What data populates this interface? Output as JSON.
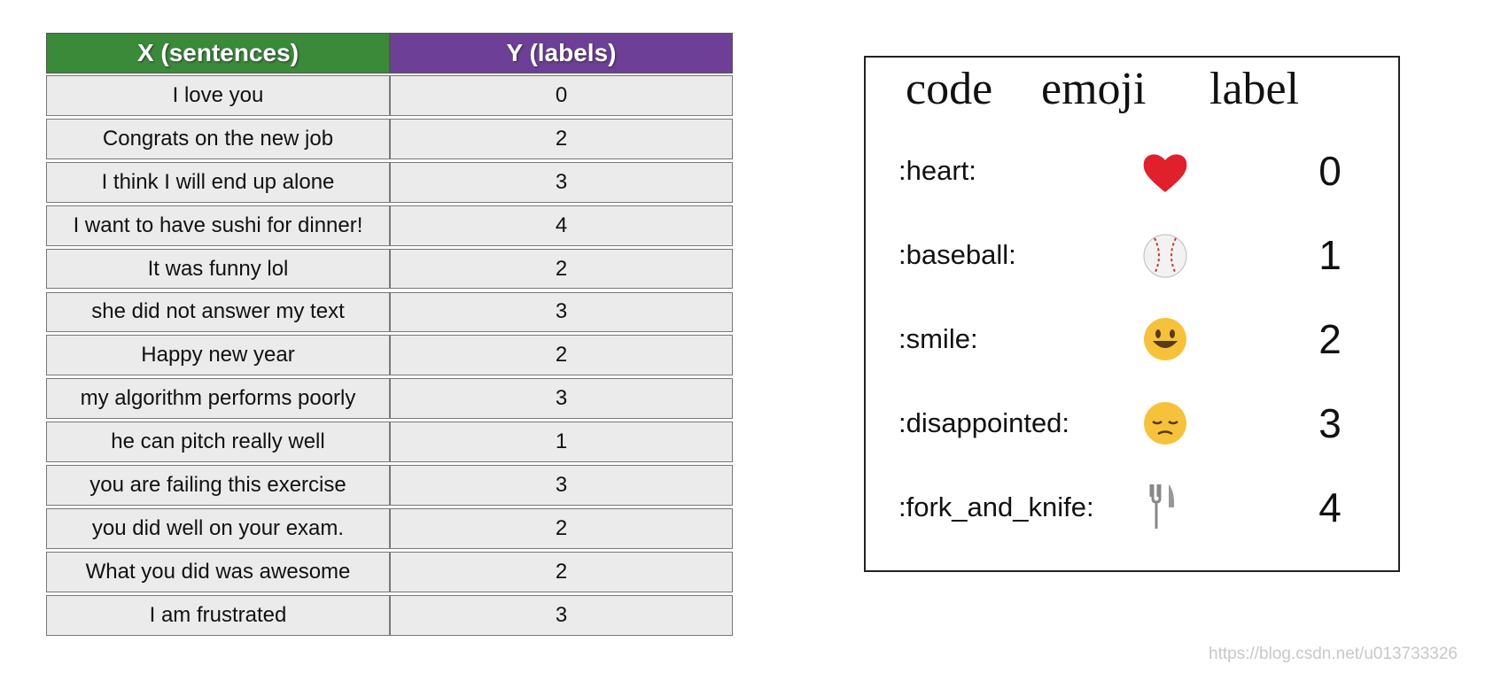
{
  "sentences_table": {
    "headers": [
      "X (sentences)",
      "Y (labels)"
    ],
    "rows": [
      [
        "I love you",
        0
      ],
      [
        "Congrats on the new job",
        2
      ],
      [
        "I think I will end up alone",
        3
      ],
      [
        "I want to have sushi for dinner!",
        4
      ],
      [
        "It was funny lol",
        2
      ],
      [
        "she did not answer my text",
        3
      ],
      [
        "Happy new year",
        2
      ],
      [
        "my algorithm performs poorly",
        3
      ],
      [
        "he can pitch really well",
        1
      ],
      [
        "you are failing this exercise",
        3
      ],
      [
        "you did well on your exam.",
        2
      ],
      [
        "What you did was awesome",
        2
      ],
      [
        "I am frustrated",
        3
      ]
    ]
  },
  "emoji_table": {
    "headers": [
      "code",
      "emoji",
      "label"
    ],
    "rows": [
      [
        ":heart:",
        0
      ],
      [
        ":baseball:",
        1
      ],
      [
        ":smile:",
        2
      ],
      [
        ":disappointed:",
        3
      ],
      [
        ":fork_and_knife:",
        4
      ]
    ]
  },
  "watermark": "https://blog.csdn.net/u013733326"
}
